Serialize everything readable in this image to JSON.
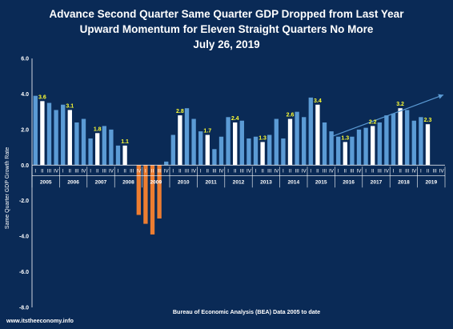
{
  "chart_data": {
    "type": "bar",
    "title": [
      "Advance Second Quarter Same Quarter GDP Dropped from Last Year",
      "Upward Momentum for Eleven Straight Quarters No More",
      "July 26, 2019"
    ],
    "ylabel": "Same Quarter GDP Growth Rate",
    "source_label": "Bureau of Economic Analysis (BEA) Data 2005 to date",
    "watermark": "www.itstheeconomy.info",
    "ylim": [
      -8.0,
      6.0
    ],
    "yticks": [
      "6.0",
      "4.0",
      "2.0",
      "0.0",
      "-2.0",
      "-4.0",
      "-6.0",
      "-8.0"
    ],
    "ytick_values": [
      6,
      4,
      2,
      0,
      -2,
      -4,
      -6,
      -8
    ],
    "quarter_labels": [
      "I",
      "II",
      "III",
      "IV"
    ],
    "years": [
      "2005",
      "2006",
      "2007",
      "2008",
      "2009",
      "2010",
      "2011",
      "2012",
      "2013",
      "2014",
      "2015",
      "2016",
      "2017",
      "2018",
      "2019"
    ],
    "values": [
      3.9,
      3.6,
      3.5,
      3.1,
      3.4,
      3.1,
      2.4,
      2.6,
      1.5,
      1.8,
      2.2,
      2.0,
      1.1,
      1.1,
      0.0,
      -2.8,
      -3.3,
      -3.9,
      -3.0,
      0.2,
      1.7,
      2.8,
      3.2,
      2.6,
      1.9,
      1.7,
      0.9,
      1.6,
      2.7,
      2.4,
      2.5,
      1.5,
      1.6,
      1.3,
      1.7,
      2.6,
      1.5,
      2.6,
      3.0,
      2.7,
      3.8,
      3.4,
      2.4,
      1.9,
      1.6,
      1.3,
      1.6,
      2.0,
      2.1,
      2.2,
      2.4,
      2.8,
      2.9,
      3.2,
      3.1,
      2.5,
      2.7,
      2.3,
      null,
      null
    ],
    "data_labels": [
      {
        "index": 1,
        "text": "3.6"
      },
      {
        "index": 5,
        "text": "3.1"
      },
      {
        "index": 9,
        "text": "1.8"
      },
      {
        "index": 13,
        "text": "1.1"
      },
      {
        "index": 21,
        "text": "2.8"
      },
      {
        "index": 25,
        "text": "1.7"
      },
      {
        "index": 29,
        "text": "2.4"
      },
      {
        "index": 33,
        "text": "1.3"
      },
      {
        "index": 37,
        "text": "2.6"
      },
      {
        "index": 41,
        "text": "3.4"
      },
      {
        "index": 45,
        "text": "1.3"
      },
      {
        "index": 49,
        "text": "2.2"
      },
      {
        "index": 53,
        "text": "3.2"
      },
      {
        "index": 57,
        "text": "2.3"
      }
    ],
    "highlight_quarter": "II",
    "grid": false,
    "legend": "none",
    "colors": {
      "background": "#0a2a56",
      "bar": "#5b9bd5",
      "highlight_bar": "#ffffff",
      "negative_bar": "#ed7d31",
      "label": "#ffff33",
      "trend_arrow": "#5b9bd5"
    }
  }
}
